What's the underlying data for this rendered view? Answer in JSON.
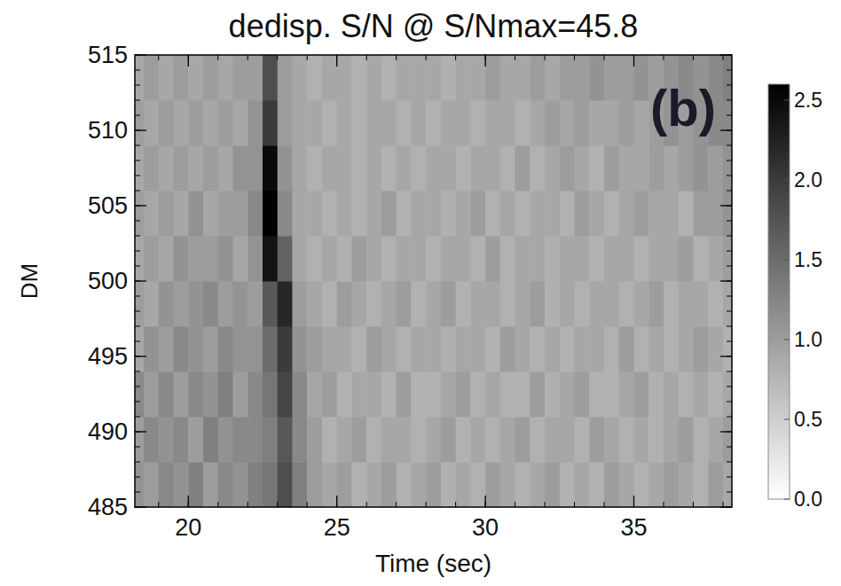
{
  "chart_data": {
    "type": "heatmap",
    "title": "dedisp. S/N @ S/Nmax=45.8",
    "annotations": [
      "(b)"
    ],
    "x_label": "Time (sec)",
    "y_label": "DM",
    "xlim": [
      18.2,
      38.3
    ],
    "xticks": [
      20,
      25,
      30,
      35
    ],
    "ylim": [
      485,
      515
    ],
    "yticks": [
      485,
      490,
      495,
      500,
      505,
      510,
      515
    ],
    "x": [
      18.25,
      18.75,
      19.25,
      19.75,
      20.25,
      20.75,
      21.25,
      21.75,
      22.25,
      22.75,
      23.25,
      23.75,
      24.25,
      24.75,
      25.25,
      25.75,
      26.25,
      26.75,
      27.25,
      27.75,
      28.25,
      28.75,
      29.25,
      29.75,
      30.25,
      30.75,
      31.25,
      31.75,
      32.25,
      32.75,
      33.25,
      33.75,
      34.25,
      34.75,
      35.25,
      35.75,
      36.25,
      36.75,
      37.25,
      37.75,
      38.25
    ],
    "y": [
      486.5,
      489.5,
      492.5,
      495.5,
      498.5,
      501.5,
      504.5,
      507.5,
      510.5,
      513.5
    ],
    "cells": [
      [
        1.1,
        1.0,
        1.2,
        1.1,
        1.3,
        1.0,
        1.2,
        1.1,
        1.3,
        1.4,
        1.8,
        1.3,
        1.0,
        0.9,
        1.0,
        0.8,
        0.9,
        1.0,
        0.8,
        0.9,
        1.0,
        0.8,
        0.9,
        0.8,
        1.0,
        0.9,
        0.8,
        0.9,
        1.0,
        0.8,
        0.9,
        0.8,
        1.0,
        0.9,
        0.8,
        0.9,
        1.0,
        0.9,
        0.8,
        1.0,
        0.9
      ],
      [
        1.0,
        1.2,
        1.1,
        1.2,
        1.0,
        1.3,
        1.1,
        1.2,
        1.2,
        1.3,
        1.7,
        1.2,
        1.0,
        0.8,
        0.9,
        1.0,
        0.8,
        0.9,
        0.9,
        0.8,
        0.9,
        1.0,
        0.8,
        0.9,
        0.8,
        0.9,
        1.0,
        0.8,
        0.9,
        0.9,
        0.8,
        1.0,
        0.9,
        0.8,
        0.9,
        0.8,
        0.9,
        1.0,
        0.8,
        0.9,
        1.0
      ],
      [
        1.2,
        1.0,
        1.2,
        1.0,
        1.2,
        1.1,
        1.3,
        1.0,
        1.2,
        1.4,
        1.9,
        1.2,
        0.9,
        1.0,
        0.8,
        0.9,
        0.9,
        0.8,
        1.0,
        0.8,
        0.8,
        0.9,
        1.0,
        0.8,
        0.9,
        0.8,
        0.8,
        1.0,
        0.8,
        0.9,
        1.0,
        0.8,
        0.8,
        0.9,
        1.0,
        0.8,
        0.9,
        0.8,
        0.9,
        0.8,
        0.9
      ],
      [
        0.9,
        1.1,
        1.0,
        1.2,
        1.1,
        1.0,
        1.2,
        1.1,
        1.1,
        1.5,
        2.0,
        1.1,
        1.0,
        0.9,
        0.9,
        0.8,
        1.0,
        0.9,
        0.8,
        0.9,
        0.9,
        0.8,
        0.9,
        0.9,
        0.8,
        1.0,
        0.9,
        0.8,
        0.9,
        0.8,
        0.9,
        0.9,
        0.8,
        1.0,
        0.8,
        0.9,
        0.8,
        0.9,
        1.0,
        0.9,
        0.8
      ],
      [
        1.0,
        0.9,
        1.1,
        1.0,
        1.1,
        1.2,
        1.0,
        1.1,
        1.0,
        1.7,
        2.2,
        1.0,
        0.9,
        0.8,
        1.0,
        0.9,
        0.8,
        0.9,
        1.0,
        0.8,
        0.9,
        1.0,
        0.8,
        0.9,
        0.9,
        0.8,
        0.9,
        1.0,
        0.8,
        0.9,
        0.8,
        0.9,
        0.9,
        0.8,
        0.9,
        1.0,
        0.8,
        0.9,
        0.9,
        0.8,
        0.9
      ],
      [
        0.9,
        1.0,
        0.9,
        1.1,
        1.0,
        1.0,
        1.1,
        0.9,
        1.1,
        2.4,
        1.6,
        0.9,
        0.8,
        0.9,
        0.8,
        1.0,
        0.9,
        0.8,
        0.9,
        0.9,
        0.8,
        0.9,
        0.9,
        0.8,
        1.0,
        0.8,
        0.9,
        0.9,
        0.8,
        0.9,
        0.9,
        0.8,
        0.9,
        0.9,
        0.8,
        0.9,
        0.9,
        1.0,
        0.8,
        0.9,
        1.0
      ],
      [
        1.0,
        0.9,
        1.0,
        0.9,
        1.1,
        0.9,
        1.0,
        1.0,
        1.2,
        2.6,
        1.2,
        0.9,
        0.9,
        0.8,
        0.9,
        0.8,
        0.9,
        1.0,
        0.8,
        0.9,
        0.9,
        0.8,
        0.9,
        1.0,
        0.8,
        0.9,
        0.8,
        0.9,
        0.9,
        0.8,
        1.0,
        0.9,
        0.8,
        0.9,
        1.0,
        0.9,
        0.9,
        0.8,
        1.0,
        1.0,
        1.1
      ],
      [
        0.9,
        1.0,
        0.9,
        1.0,
        0.9,
        1.0,
        0.9,
        1.1,
        1.1,
        2.5,
        1.1,
        0.9,
        0.8,
        0.9,
        0.9,
        0.8,
        0.9,
        0.8,
        0.9,
        0.8,
        0.9,
        0.9,
        0.8,
        0.9,
        0.9,
        0.8,
        1.0,
        0.8,
        0.9,
        1.0,
        0.9,
        0.8,
        1.0,
        0.9,
        0.9,
        1.0,
        0.9,
        1.0,
        1.1,
        1.0,
        1.1
      ],
      [
        1.0,
        0.9,
        1.0,
        0.9,
        1.0,
        0.9,
        1.0,
        0.9,
        1.1,
        2.0,
        1.0,
        0.9,
        0.9,
        0.8,
        0.9,
        0.8,
        0.9,
        0.9,
        0.8,
        0.9,
        0.8,
        0.9,
        0.9,
        0.8,
        0.9,
        0.9,
        0.8,
        0.9,
        1.0,
        0.9,
        1.0,
        0.9,
        0.9,
        1.0,
        0.9,
        1.0,
        1.1,
        1.0,
        1.1,
        1.2,
        1.2
      ],
      [
        0.9,
        1.0,
        0.9,
        1.0,
        0.9,
        1.0,
        0.9,
        1.0,
        1.0,
        1.8,
        1.0,
        0.9,
        0.8,
        0.9,
        0.9,
        0.8,
        0.9,
        0.8,
        0.9,
        0.9,
        0.9,
        0.8,
        0.9,
        0.9,
        1.0,
        0.9,
        0.9,
        1.0,
        0.9,
        1.0,
        1.0,
        1.1,
        1.0,
        1.0,
        1.1,
        1.0,
        1.1,
        1.2,
        1.1,
        1.2,
        1.3
      ]
    ],
    "color_range": [
      0,
      2.6
    ],
    "color_ticks": [
      {
        "value": 0,
        "label": "0.0"
      },
      {
        "value": 0.5,
        "label": "0.5"
      },
      {
        "value": 1,
        "label": "1.0"
      },
      {
        "value": 1.5,
        "label": "1.5"
      },
      {
        "value": 2,
        "label": "2.0"
      },
      {
        "value": 2.5,
        "label": "2.5"
      }
    ]
  }
}
